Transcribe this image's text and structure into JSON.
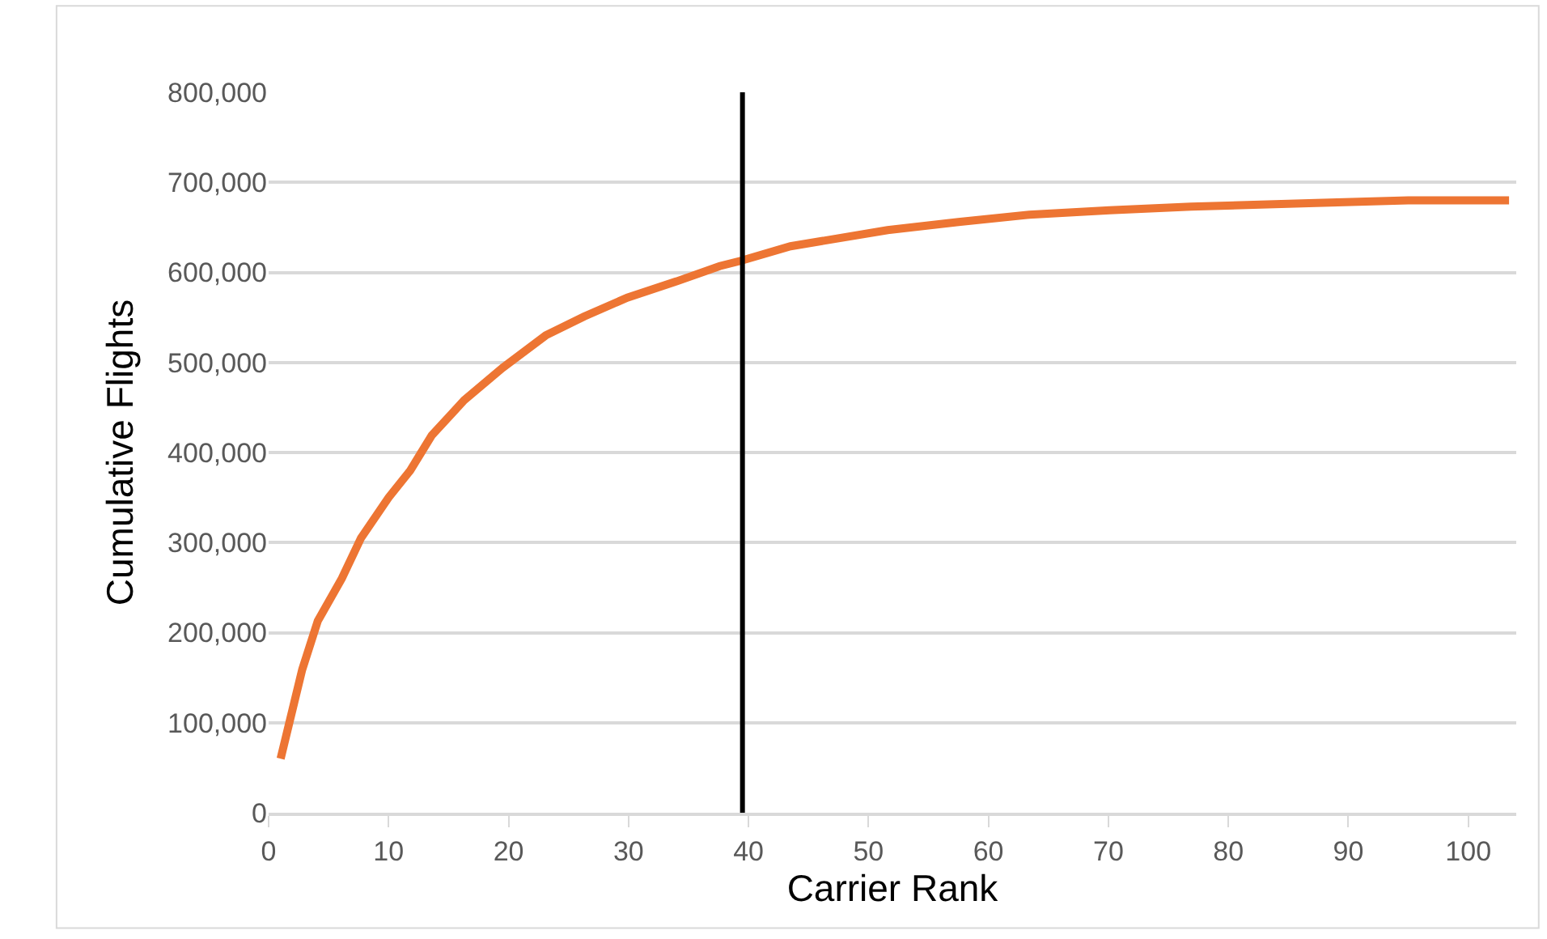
{
  "chart_data": {
    "type": "line",
    "xlabel": "Carrier Rank",
    "ylabel": "Cumulative Flights",
    "xlim": [
      0,
      104
    ],
    "xticks": [
      0,
      10,
      20,
      30,
      40,
      50,
      60,
      70,
      80,
      90,
      100
    ],
    "ylim": [
      0,
      800000
    ],
    "yticks": [
      {
        "value": 0,
        "label": "0"
      },
      {
        "value": 100000,
        "label": "100,000"
      },
      {
        "value": 200000,
        "label": "200,000"
      },
      {
        "value": 300000,
        "label": "300,000"
      },
      {
        "value": 400000,
        "label": "400,000"
      },
      {
        "value": 500000,
        "label": "500,000"
      },
      {
        "value": 600000,
        "label": "600,000"
      },
      {
        "value": 700000,
        "label": "700,000"
      },
      {
        "value": 800000,
        "label": "800,000"
      }
    ],
    "grid": "y",
    "marker": "none",
    "line_style": "solid",
    "series": [
      {
        "color": "#ed7533",
        "x": [
          1,
          2.8,
          4.1,
          6.1,
          7.7,
          10,
          11.8,
          13.6,
          16.3,
          19.5,
          23.1,
          26.3,
          29.9,
          34,
          37.6,
          39.4,
          43.5,
          51.6,
          57.5,
          63.4,
          70.1,
          76.9,
          87.3,
          95,
          103.4
        ],
        "values": [
          60000,
          159000,
          213000,
          260000,
          305000,
          350000,
          380000,
          419000,
          458000,
          494000,
          530000,
          551000,
          572000,
          590000,
          607000,
          613000,
          629000,
          647000,
          656000,
          664000,
          669000,
          673000,
          677000,
          680000,
          680000
        ]
      }
    ],
    "ref_lines": [
      {
        "axis": "x",
        "value": 39.5,
        "color": "#000000",
        "line_style": "solid"
      }
    ]
  }
}
